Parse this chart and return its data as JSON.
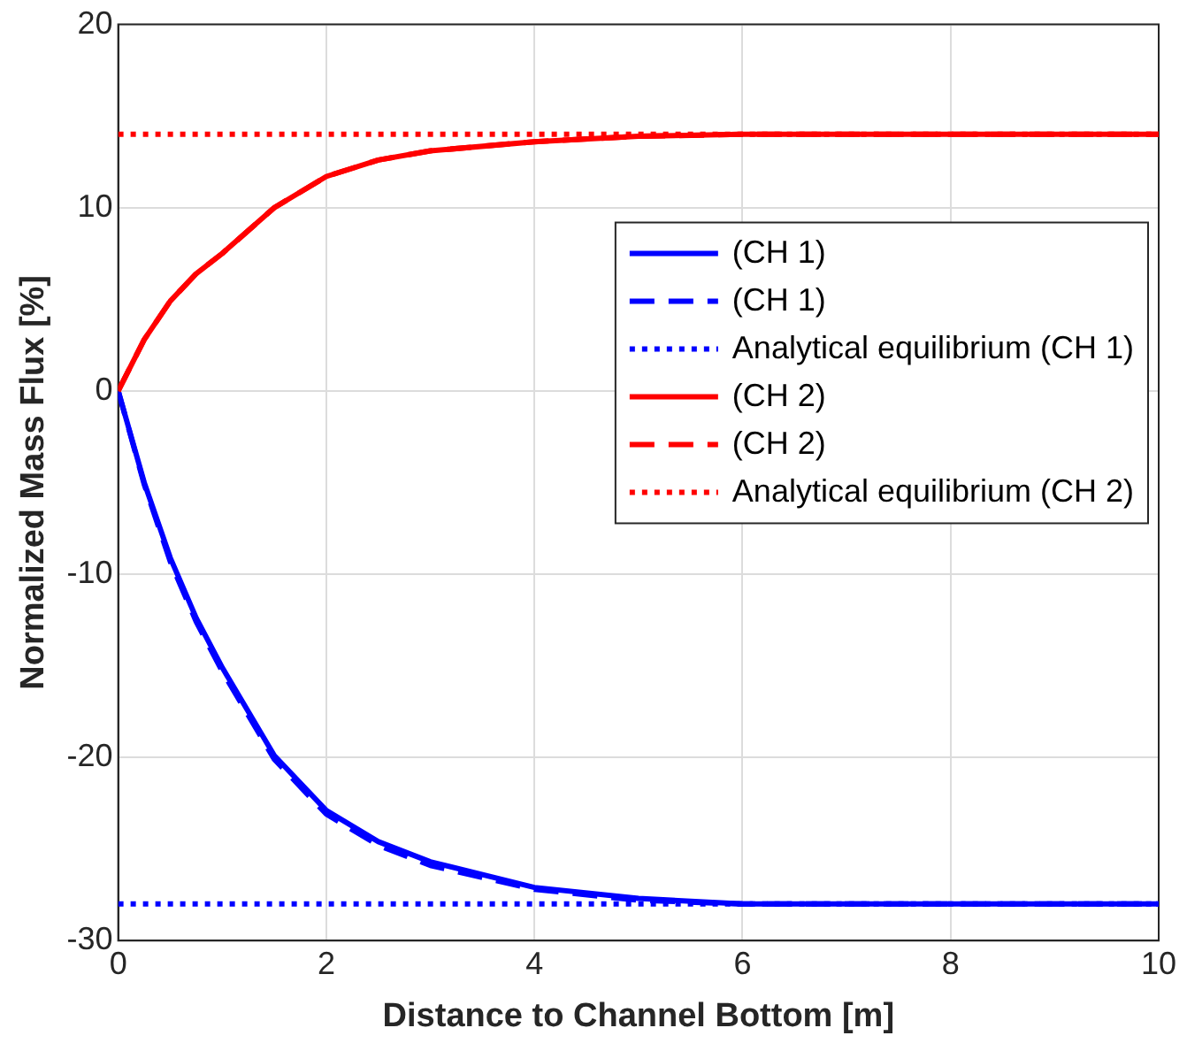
{
  "chart_data": {
    "type": "line",
    "xlabel": "Distance to Channel Bottom [m]",
    "ylabel": "Normalized Mass Flux [%]",
    "xlim": [
      0,
      10
    ],
    "xticks": [
      0,
      2,
      4,
      6,
      8,
      10
    ],
    "ylim": [
      -30,
      20
    ],
    "yticks": [
      -30,
      -20,
      -10,
      0,
      10,
      20
    ],
    "grid": true,
    "legend": "right",
    "marker": "none",
    "series": [
      {
        "name": "(CH 1)",
        "color": "#0000ff",
        "line_style": "solid",
        "x": [
          0,
          0.25,
          0.5,
          0.75,
          1,
          1.5,
          2,
          2.5,
          3,
          4,
          5,
          6,
          8,
          10
        ],
        "values": [
          0,
          -5,
          -9.1,
          -12.4,
          -15.1,
          -19.9,
          -22.9,
          -24.6,
          -25.7,
          -27.1,
          -27.7,
          -28,
          -28,
          -28
        ]
      },
      {
        "name": "(CH 1)",
        "color": "#0000ff",
        "line_style": "dashed",
        "x": [
          0,
          0.25,
          0.5,
          0.75,
          1,
          1.5,
          2,
          2.5,
          3,
          4,
          5,
          6,
          8,
          10
        ],
        "values": [
          0,
          -5.1,
          -9.3,
          -12.6,
          -15.3,
          -20.1,
          -23.1,
          -24.8,
          -25.9,
          -27.2,
          -27.8,
          -28,
          -28,
          -28
        ]
      },
      {
        "name": "Analytical equilibrium (CH 1)",
        "color": "#0000ff",
        "line_style": "dotted",
        "x": [
          0,
          10
        ],
        "values": [
          -28,
          -28
        ]
      },
      {
        "name": "(CH 2)",
        "color": "#ff0000",
        "line_style": "solid",
        "x": [
          0,
          0.25,
          0.5,
          0.75,
          1,
          1.5,
          2,
          2.5,
          3,
          4,
          5,
          6,
          8,
          10
        ],
        "values": [
          0,
          2.8,
          4.9,
          6.4,
          7.5,
          10,
          11.7,
          12.6,
          13.1,
          13.6,
          13.9,
          14,
          14,
          14
        ]
      },
      {
        "name": "(CH 2)",
        "color": "#ff0000",
        "line_style": "dashed",
        "x": [
          0,
          0.25,
          0.5,
          0.75,
          1,
          1.5,
          2,
          2.5,
          3,
          4,
          5,
          6,
          8,
          10
        ],
        "values": [
          0,
          2.8,
          4.9,
          6.4,
          7.5,
          10,
          11.7,
          12.6,
          13.1,
          13.6,
          13.9,
          14,
          14,
          14
        ]
      },
      {
        "name": "Analytical equilibrium (CH 2)",
        "color": "#ff0000",
        "line_style": "dotted",
        "x": [
          0,
          10
        ],
        "values": [
          14,
          14
        ]
      }
    ]
  }
}
